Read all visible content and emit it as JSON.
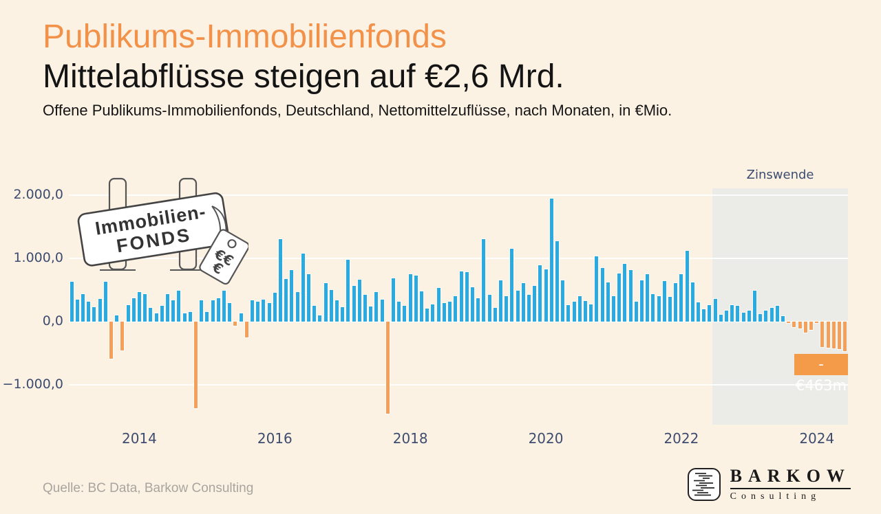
{
  "header": {
    "title": "Publikums-Immobilienfonds",
    "subtitle": "Mittelabflüsse steigen auf €2,6 Mrd.",
    "description": "Offene Publikums-Immobilienfonds, Deutschland, Nettomittelzuflüsse, nach Monaten, in €Mio."
  },
  "chart_data": {
    "type": "bar",
    "title": "Offene Publikums-Immobilienfonds, Deutschland, Nettomittelzuflüsse, nach Monaten, in €Mio.",
    "unit": "EUR Mio.",
    "grid": true,
    "ylim": [
      -1600,
      2100
    ],
    "positive_color": "#29ABE2",
    "negative_color": "#F5A05A",
    "y_ticks": [
      {
        "value": 2000,
        "label": "2.000,0"
      },
      {
        "value": 1000,
        "label": "1.000,0"
      },
      {
        "value": 0,
        "label": "0,0"
      },
      {
        "value": -1000,
        "label": "−1.000,0"
      }
    ],
    "x_ticks": [
      {
        "label": "2014",
        "month_index": 12
      },
      {
        "label": "2016",
        "month_index": 36
      },
      {
        "label": "2018",
        "month_index": 60
      },
      {
        "label": "2020",
        "month_index": 84
      },
      {
        "label": "2022",
        "month_index": 108
      },
      {
        "label": "2024",
        "month_index": 132
      }
    ],
    "shaded_region": {
      "label": "Zinswende",
      "start_month_index": 114,
      "color": "#EBEBE8"
    },
    "annotation": {
      "text": "-€463m",
      "month_index": 137,
      "bg": "#F49B4A"
    },
    "x": [
      "2013-01",
      "2013-02",
      "2013-03",
      "2013-04",
      "2013-05",
      "2013-06",
      "2013-07",
      "2013-08",
      "2013-09",
      "2013-10",
      "2013-11",
      "2013-12",
      "2014-01",
      "2014-02",
      "2014-03",
      "2014-04",
      "2014-05",
      "2014-06",
      "2014-07",
      "2014-08",
      "2014-09",
      "2014-10",
      "2014-11",
      "2014-12",
      "2015-01",
      "2015-02",
      "2015-03",
      "2015-04",
      "2015-05",
      "2015-06",
      "2015-07",
      "2015-08",
      "2015-09",
      "2015-10",
      "2015-11",
      "2015-12",
      "2016-01",
      "2016-02",
      "2016-03",
      "2016-04",
      "2016-05",
      "2016-06",
      "2016-07",
      "2016-08",
      "2016-09",
      "2016-10",
      "2016-11",
      "2016-12",
      "2017-01",
      "2017-02",
      "2017-03",
      "2017-04",
      "2017-05",
      "2017-06",
      "2017-07",
      "2017-08",
      "2017-09",
      "2017-10",
      "2017-11",
      "2017-12",
      "2018-01",
      "2018-02",
      "2018-03",
      "2018-04",
      "2018-05",
      "2018-06",
      "2018-07",
      "2018-08",
      "2018-09",
      "2018-10",
      "2018-11",
      "2018-12",
      "2019-01",
      "2019-02",
      "2019-03",
      "2019-04",
      "2019-05",
      "2019-06",
      "2019-07",
      "2019-08",
      "2019-09",
      "2019-10",
      "2019-11",
      "2019-12",
      "2020-01",
      "2020-02",
      "2020-03",
      "2020-04",
      "2020-05",
      "2020-06",
      "2020-07",
      "2020-08",
      "2020-09",
      "2020-10",
      "2020-11",
      "2020-12",
      "2021-01",
      "2021-02",
      "2021-03",
      "2021-04",
      "2021-05",
      "2021-06",
      "2021-07",
      "2021-08",
      "2021-09",
      "2021-10",
      "2021-11",
      "2021-12",
      "2022-01",
      "2022-02",
      "2022-03",
      "2022-04",
      "2022-05",
      "2022-06",
      "2022-07",
      "2022-08",
      "2022-09",
      "2022-10",
      "2022-11",
      "2022-12",
      "2023-01",
      "2023-02",
      "2023-03",
      "2023-04",
      "2023-05",
      "2023-06",
      "2023-07",
      "2023-08",
      "2023-09",
      "2023-10",
      "2023-11",
      "2023-12",
      "2024-01",
      "2024-02",
      "2024-03",
      "2024-04",
      "2024-05",
      "2024-06"
    ],
    "values": [
      630,
      350,
      430,
      310,
      230,
      360,
      630,
      -585,
      100,
      -460,
      260,
      365,
      470,
      430,
      215,
      135,
      255,
      440,
      340,
      490,
      130,
      150,
      -1370,
      340,
      150,
      335,
      365,
      490,
      295,
      -70,
      130,
      -255,
      340,
      320,
      345,
      295,
      455,
      1305,
      675,
      815,
      470,
      1080,
      745,
      255,
      100,
      610,
      500,
      335,
      230,
      980,
      570,
      665,
      425,
      240,
      465,
      345,
      -1460,
      680,
      310,
      245,
      745,
      730,
      480,
      205,
      270,
      535,
      290,
      310,
      400,
      795,
      780,
      545,
      370,
      1305,
      425,
      215,
      650,
      400,
      1150,
      485,
      610,
      420,
      565,
      890,
      830,
      1950,
      1270,
      650,
      265,
      310,
      400,
      330,
      270,
      1030,
      845,
      620,
      405,
      765,
      915,
      820,
      310,
      650,
      755,
      430,
      400,
      645,
      395,
      605,
      755,
      1120,
      625,
      300,
      200,
      265,
      360,
      105,
      170,
      265,
      255,
      140,
      170,
      485,
      120,
      175,
      220,
      250,
      90,
      -25,
      -90,
      -110,
      -175,
      -130,
      -10,
      -400,
      -415,
      -420,
      -440,
      -463
    ]
  },
  "sign": {
    "line1": "Immobilien-",
    "line2": "FONDS",
    "tag_text": "€€"
  },
  "footer": {
    "source": "Quelle: BC Data, Barkow Consulting"
  },
  "logo": {
    "name": "BARKOW",
    "subname": "Consulting"
  }
}
